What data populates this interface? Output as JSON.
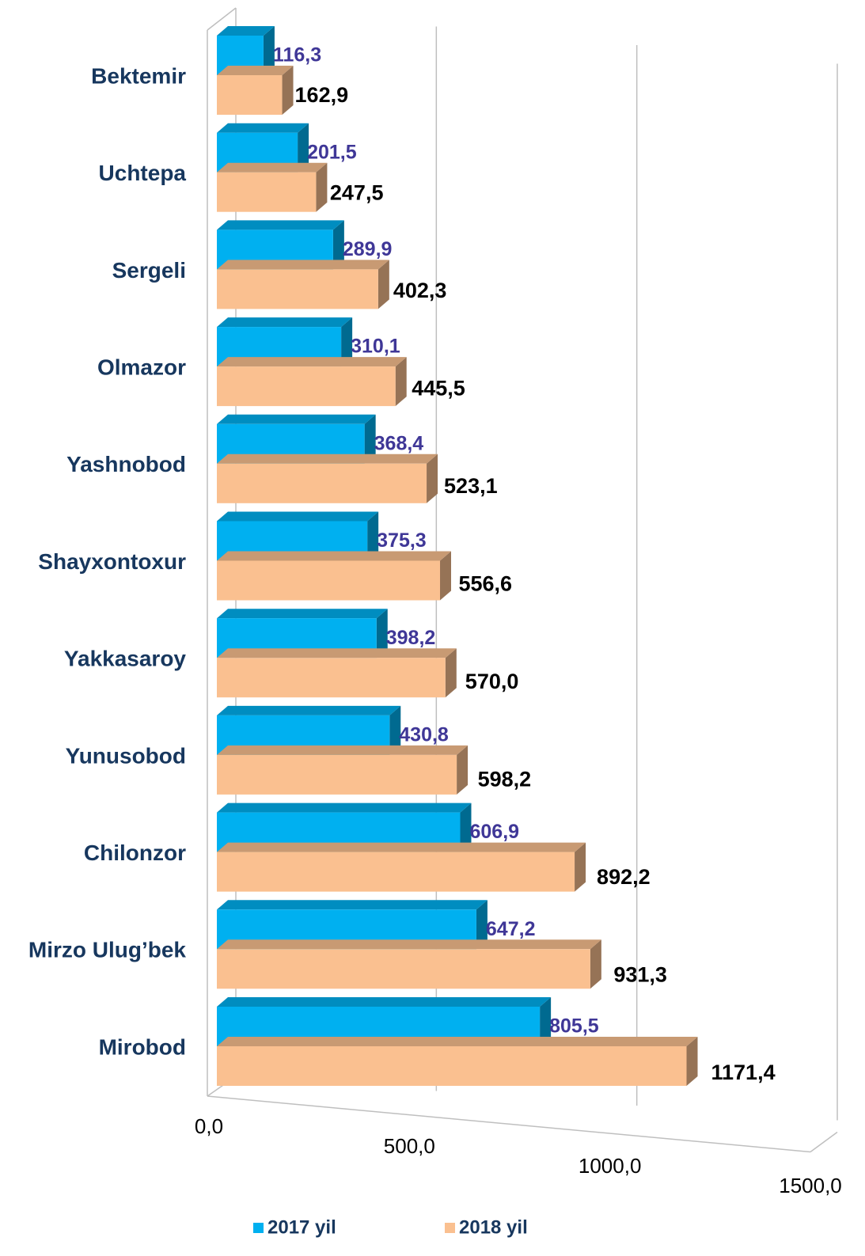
{
  "chart_data": {
    "type": "bar3d-horizontal",
    "categories": [
      "Bektemir",
      "Uchtepa",
      "Sergeli",
      "Olmazor",
      "Yashnobod",
      "Shayxontoxur",
      "Yakkasaroy",
      "Yunusobod",
      "Chilonzor",
      "Mirzo Ulug’bek",
      "Mirobod"
    ],
    "series": [
      {
        "name": "2017 yil",
        "color": "#00b0f0",
        "values": [
          116.3,
          201.5,
          289.9,
          310.1,
          368.4,
          375.3,
          398.2,
          430.8,
          606.9,
          647.2,
          805.5
        ],
        "value_labels": [
          "116,3",
          "201,5",
          "289,9",
          "310,1",
          "368,4",
          "375,3",
          "398,2",
          "430,8",
          "606,9",
          "647,2",
          "805,5"
        ]
      },
      {
        "name": "2018 yil",
        "color": "#fac090",
        "values": [
          162.9,
          247.5,
          402.3,
          445.5,
          523.1,
          556.6,
          570.0,
          598.2,
          892.2,
          931.3,
          1171.4
        ],
        "value_labels": [
          "162,9",
          "247,5",
          "402,3",
          "445,5",
          "523,1",
          "556,6",
          "570,0",
          "598,2",
          "892,2",
          "931,3",
          "1171,4"
        ]
      }
    ],
    "xlim": [
      0,
      1500
    ],
    "xticks": [
      {
        "value": 0,
        "label": "0,0"
      },
      {
        "value": 500,
        "label": "500,0"
      },
      {
        "value": 1000,
        "label": "1000,0"
      },
      {
        "value": 1500,
        "label": "1500,0"
      }
    ],
    "grid": true,
    "legend": "bottom"
  }
}
